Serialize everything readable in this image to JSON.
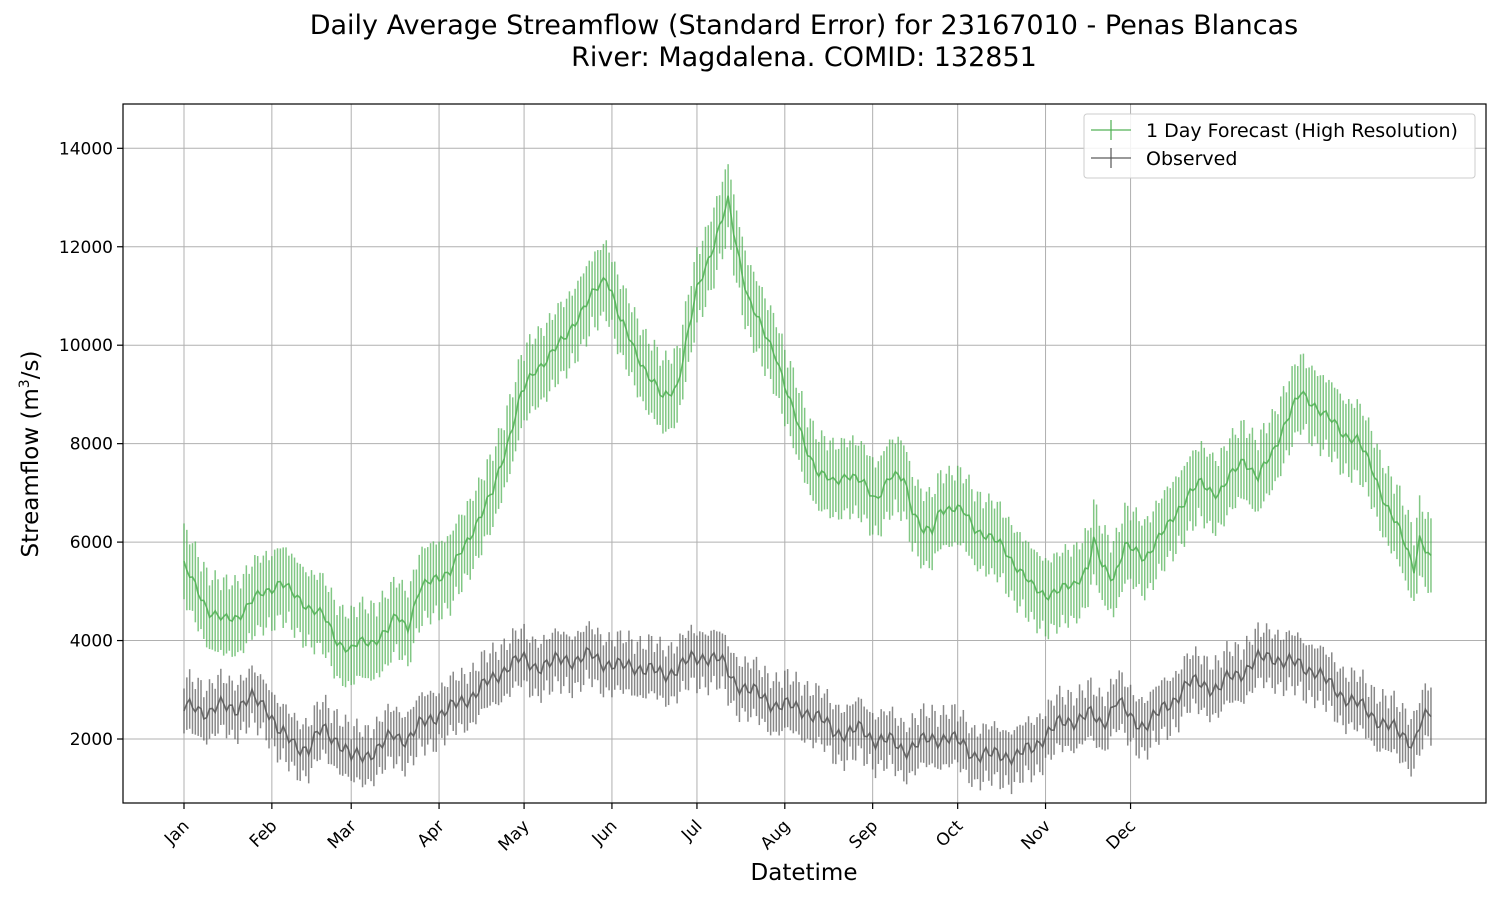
{
  "chart_data": {
    "type": "line",
    "title_line1": "Daily Average Streamflow (Standard Error) for 23167010 - Penas Blancas",
    "title_line2": "River: Magdalena. COMID: 132851",
    "xlabel": "Datetime",
    "ylabel_main": "Streamflow (m",
    "ylabel_sup": "3",
    "ylabel_end": "/s)",
    "x_ticks": [
      "Jan",
      "Feb",
      "Mar",
      "Apr",
      "May",
      "Jun",
      "Jul",
      "Aug",
      "Sep",
      "Oct",
      "Nov",
      "Dec"
    ],
    "x_range": [
      1,
      366
    ],
    "ylim": [
      700,
      14900
    ],
    "y_ticks": [
      2000,
      4000,
      6000,
      8000,
      10000,
      12000,
      14000
    ],
    "grid": true,
    "legend_position": "top-right",
    "series": [
      {
        "name": "1 Day Forecast (High Resolution)",
        "color": "#4caf50",
        "mean_keypoints": [
          [
            1,
            5500
          ],
          [
            5,
            5100
          ],
          [
            10,
            4600
          ],
          [
            15,
            4400
          ],
          [
            20,
            4500
          ],
          [
            25,
            4800
          ],
          [
            30,
            5000
          ],
          [
            35,
            5200
          ],
          [
            40,
            4900
          ],
          [
            45,
            4700
          ],
          [
            50,
            4500
          ],
          [
            55,
            4000
          ],
          [
            60,
            3800
          ],
          [
            63,
            3950
          ],
          [
            68,
            4000
          ],
          [
            73,
            4200
          ],
          [
            76,
            4500
          ],
          [
            80,
            4300
          ],
          [
            84,
            5000
          ],
          [
            90,
            5300
          ],
          [
            95,
            5400
          ],
          [
            100,
            5900
          ],
          [
            105,
            6500
          ],
          [
            110,
            7000
          ],
          [
            115,
            8000
          ],
          [
            120,
            9000
          ],
          [
            125,
            9500
          ],
          [
            130,
            9800
          ],
          [
            135,
            10100
          ],
          [
            140,
            10600
          ],
          [
            145,
            11000
          ],
          [
            150,
            11400
          ],
          [
            152,
            11100
          ],
          [
            155,
            10500
          ],
          [
            160,
            9900
          ],
          [
            165,
            9400
          ],
          [
            170,
            8900
          ],
          [
            175,
            9200
          ],
          [
            178,
            10000
          ],
          [
            182,
            11100
          ],
          [
            185,
            11600
          ],
          [
            190,
            12400
          ],
          [
            193,
            12900
          ],
          [
            196,
            12000
          ],
          [
            200,
            11000
          ],
          [
            205,
            10300
          ],
          [
            210,
            9800
          ],
          [
            215,
            8800
          ],
          [
            220,
            8000
          ],
          [
            225,
            7400
          ],
          [
            230,
            7200
          ],
          [
            235,
            7400
          ],
          [
            240,
            7200
          ],
          [
            245,
            6900
          ],
          [
            250,
            7300
          ],
          [
            255,
            7300
          ],
          [
            258,
            6700
          ],
          [
            262,
            6200
          ],
          [
            265,
            6200
          ],
          [
            268,
            6700
          ],
          [
            272,
            6700
          ],
          [
            276,
            6600
          ],
          [
            280,
            6300
          ],
          [
            285,
            6100
          ],
          [
            290,
            5900
          ],
          [
            295,
            5500
          ],
          [
            300,
            5100
          ],
          [
            305,
            4950
          ],
          [
            310,
            5000
          ],
          [
            315,
            5150
          ],
          [
            320,
            5500
          ],
          [
            322,
            6000
          ],
          [
            325,
            5500
          ],
          [
            329,
            5300
          ],
          [
            333,
            5900
          ],
          [
            337,
            5800
          ],
          [
            340,
            5700
          ],
          [
            344,
            6000
          ],
          [
            348,
            6300
          ],
          [
            352,
            6700
          ],
          [
            356,
            7000
          ],
          [
            360,
            7200
          ],
          [
            362,
            7100
          ],
          [
            366,
            7000
          ]
        ],
        "mean_keypoints_2": [
          [
            366,
            7000
          ],
          [
            370,
            7300
          ],
          [
            375,
            7700
          ],
          [
            380,
            7300
          ],
          [
            385,
            7800
          ],
          [
            390,
            8500
          ],
          [
            395,
            9000
          ],
          [
            400,
            8800
          ],
          [
            405,
            8500
          ],
          [
            410,
            8200
          ],
          [
            415,
            8100
          ],
          [
            420,
            7500
          ],
          [
            425,
            6800
          ],
          [
            430,
            6200
          ],
          [
            435,
            5500
          ],
          [
            437,
            6100
          ],
          [
            441,
            5600
          ]
        ],
        "error_halfwidth": 750
      },
      {
        "name": "Observed",
        "color": "#555555",
        "mean_keypoints": [
          [
            1,
            2600
          ],
          [
            5,
            2700
          ],
          [
            10,
            2500
          ],
          [
            15,
            2700
          ],
          [
            20,
            2650
          ],
          [
            25,
            2800
          ],
          [
            30,
            2700
          ],
          [
            35,
            2100
          ],
          [
            40,
            1900
          ],
          [
            45,
            1800
          ],
          [
            50,
            2200
          ],
          [
            55,
            2000
          ],
          [
            60,
            1600
          ],
          [
            65,
            1700
          ],
          [
            70,
            1800
          ],
          [
            75,
            2100
          ],
          [
            80,
            2000
          ],
          [
            85,
            2300
          ],
          [
            90,
            2500
          ],
          [
            95,
            2600
          ],
          [
            100,
            2800
          ],
          [
            105,
            3000
          ],
          [
            110,
            3200
          ],
          [
            115,
            3500
          ],
          [
            120,
            3600
          ],
          [
            125,
            3500
          ],
          [
            130,
            3500
          ],
          [
            135,
            3650
          ],
          [
            140,
            3600
          ],
          [
            145,
            3700
          ],
          [
            150,
            3550
          ],
          [
            155,
            3450
          ],
          [
            160,
            3500
          ],
          [
            165,
            3400
          ],
          [
            170,
            3300
          ],
          [
            175,
            3450
          ],
          [
            180,
            3600
          ],
          [
            185,
            3700
          ],
          [
            190,
            3600
          ],
          [
            195,
            3200
          ],
          [
            200,
            3000
          ],
          [
            205,
            2850
          ],
          [
            210,
            2700
          ],
          [
            215,
            2650
          ],
          [
            220,
            2600
          ],
          [
            225,
            2400
          ],
          [
            230,
            2200
          ],
          [
            235,
            2100
          ],
          [
            240,
            2200
          ],
          [
            245,
            2000
          ],
          [
            250,
            1950
          ],
          [
            255,
            1800
          ],
          [
            260,
            1900
          ],
          [
            265,
            2000
          ],
          [
            270,
            2050
          ],
          [
            275,
            1900
          ],
          [
            280,
            1700
          ],
          [
            285,
            1650
          ],
          [
            290,
            1700
          ],
          [
            295,
            1650
          ],
          [
            300,
            1800
          ],
          [
            305,
            2100
          ],
          [
            310,
            2300
          ],
          [
            315,
            2400
          ],
          [
            320,
            2500
          ],
          [
            325,
            2300
          ],
          [
            330,
            2800
          ],
          [
            335,
            2400
          ],
          [
            340,
            2300
          ],
          [
            345,
            2500
          ],
          [
            350,
            2800
          ],
          [
            355,
            3100
          ],
          [
            360,
            3150
          ],
          [
            366,
            3000
          ]
        ],
        "mean_keypoints_2": [
          [
            366,
            3000
          ],
          [
            370,
            3250
          ],
          [
            375,
            3400
          ],
          [
            380,
            3600
          ],
          [
            385,
            3700
          ],
          [
            390,
            3550
          ],
          [
            395,
            3500
          ],
          [
            400,
            3400
          ],
          [
            405,
            3100
          ],
          [
            410,
            2900
          ],
          [
            415,
            2700
          ],
          [
            420,
            2500
          ],
          [
            425,
            2300
          ],
          [
            430,
            2100
          ],
          [
            435,
            1950
          ],
          [
            437,
            2300
          ],
          [
            441,
            2500
          ]
        ],
        "error_halfwidth": 550
      }
    ]
  }
}
